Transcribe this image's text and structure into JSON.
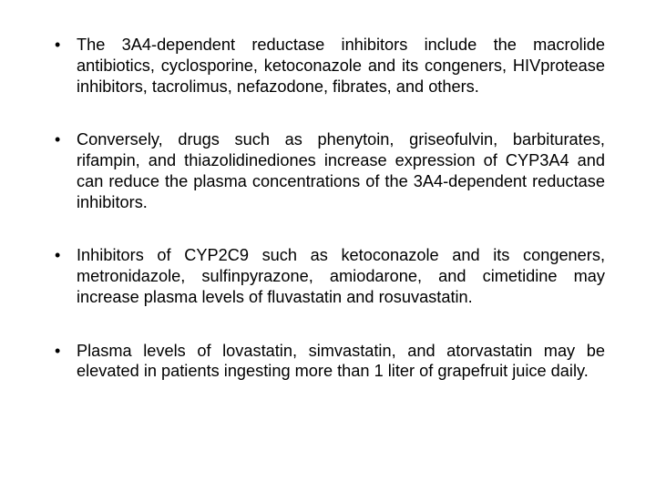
{
  "slide": {
    "background_color": "#ffffff",
    "text_color": "#000000",
    "bullet_char": "•",
    "font_family": "Arial",
    "font_size_pt": 14,
    "line_height": 1.25,
    "text_align": "justify",
    "bullets": [
      "The 3A4-dependent reductase inhibitors include the macrolide antibiotics, cyclosporine, ketoconazole and its congeners, HIVprotease inhibitors, tacrolimus, nefazodone, fibrates, and others.",
      "Conversely, drugs such as phenytoin, griseofulvin, barbiturates, rifampin, and thiazolidinediones increase expression of CYP3A4 and can reduce the plasma concentrations of the 3A4-dependent reductase inhibitors.",
      "Inhibitors of CYP2C9 such as ketoconazole and its congeners, metronidazole, sulfinpyrazone, amiodarone, and cimetidine may increase plasma levels of fluvastatin and rosuvastatin.",
      "Plasma levels of lovastatin, simvastatin, and atorvastatin may be elevated in patients ingesting more than 1 liter of grapefruit juice daily."
    ]
  }
}
